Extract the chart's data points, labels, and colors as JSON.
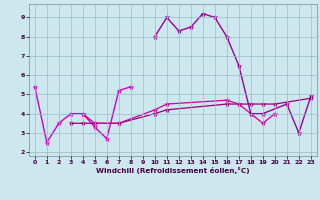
{
  "xlabel": "Windchill (Refroidissement éolien,°C)",
  "background_color": "#cce8ee",
  "grid_color": "#99bbcc",
  "xlim": [
    -0.5,
    23.5
  ],
  "ylim": [
    1.8,
    9.7
  ],
  "yticks": [
    2,
    3,
    4,
    5,
    6,
    7,
    8,
    9
  ],
  "xticks": [
    0,
    1,
    2,
    3,
    4,
    5,
    6,
    7,
    8,
    9,
    10,
    11,
    12,
    13,
    14,
    15,
    16,
    17,
    18,
    19,
    20,
    21,
    22,
    23
  ],
  "series": [
    {
      "x": [
        0,
        1,
        2,
        3,
        4,
        5,
        6,
        7,
        8
      ],
      "y": [
        5.4,
        2.5,
        3.5,
        4.0,
        4.0,
        3.3,
        2.7,
        5.2,
        5.4
      ],
      "color": "#cc00cc",
      "lw": 1.0
    },
    {
      "x": [
        3,
        4,
        5,
        7,
        10,
        11,
        16,
        17,
        18,
        19,
        20,
        23
      ],
      "y": [
        3.5,
        3.5,
        3.5,
        3.5,
        4.0,
        4.2,
        4.5,
        4.5,
        4.5,
        4.5,
        4.5,
        4.8
      ],
      "color": "#990077",
      "lw": 0.9
    },
    {
      "x": [
        4,
        5,
        7,
        10,
        11,
        16,
        17,
        18,
        19,
        20
      ],
      "y": [
        4.0,
        3.5,
        3.5,
        4.2,
        4.5,
        4.7,
        4.5,
        4.0,
        3.5,
        4.0
      ],
      "color": "#cc0099",
      "lw": 0.9
    },
    {
      "x": [
        10,
        11,
        12,
        13,
        14,
        15,
        16,
        17,
        18,
        19,
        21,
        22,
        23
      ],
      "y": [
        8.0,
        9.0,
        8.3,
        8.5,
        9.2,
        9.0,
        8.0,
        6.5,
        4.0,
        4.0,
        4.5,
        3.0,
        4.9
      ],
      "color": "#990099",
      "lw": 1.0
    }
  ]
}
